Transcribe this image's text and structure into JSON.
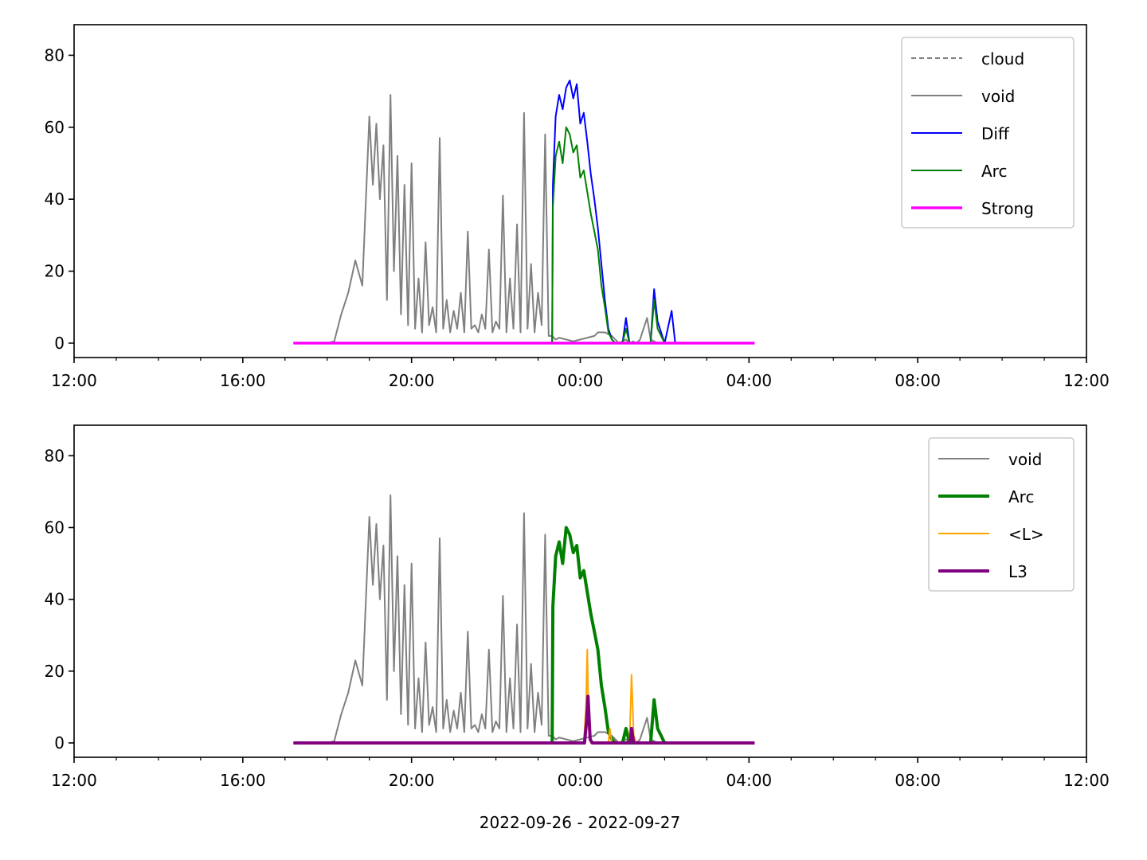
{
  "chart_data": [
    {
      "type": "line",
      "title": "",
      "xlabel": "",
      "ylabel": "",
      "xlim": [
        "2022-09-26 12:00",
        "2022-09-27 12:00"
      ],
      "ylim": [
        -4,
        88.5
      ],
      "x_ticks": [
        "12:00",
        "16:00",
        "20:00",
        "00:00",
        "04:00",
        "08:00",
        "12:00"
      ],
      "y_ticks": [
        "0",
        "20",
        "40",
        "60",
        "80"
      ],
      "grid": false,
      "legend_position": "top-right",
      "legend": [
        "cloud",
        "void",
        "Diff",
        "Arc",
        "Strong"
      ],
      "series": [
        {
          "name": "cloud",
          "color": "#808080",
          "style": "dashed",
          "points": []
        },
        {
          "name": "void",
          "color": "#808080",
          "style": "solid",
          "points": [
            [
              "17:12",
              0
            ],
            [
              "18:00",
              0
            ],
            [
              "18:10",
              0.5
            ],
            [
              "18:20",
              8
            ],
            [
              "18:30",
              14
            ],
            [
              "18:40",
              23
            ],
            [
              "18:50",
              16
            ],
            [
              "19:00",
              63
            ],
            [
              "19:05",
              44
            ],
            [
              "19:10",
              61
            ],
            [
              "19:15",
              40
            ],
            [
              "19:20",
              55
            ],
            [
              "19:25",
              12
            ],
            [
              "19:30",
              69
            ],
            [
              "19:35",
              20
            ],
            [
              "19:40",
              52
            ],
            [
              "19:45",
              8
            ],
            [
              "19:50",
              44
            ],
            [
              "19:55",
              5
            ],
            [
              "20:00",
              50
            ],
            [
              "20:05",
              4
            ],
            [
              "20:10",
              18
            ],
            [
              "20:15",
              3
            ],
            [
              "20:20",
              28
            ],
            [
              "20:25",
              5
            ],
            [
              "20:30",
              10
            ],
            [
              "20:35",
              3
            ],
            [
              "20:40",
              57
            ],
            [
              "20:45",
              4
            ],
            [
              "20:50",
              12
            ],
            [
              "20:55",
              3
            ],
            [
              "21:00",
              9
            ],
            [
              "21:05",
              4
            ],
            [
              "21:10",
              14
            ],
            [
              "21:15",
              3
            ],
            [
              "21:20",
              31
            ],
            [
              "21:25",
              4
            ],
            [
              "21:30",
              5
            ],
            [
              "21:35",
              3
            ],
            [
              "21:40",
              8
            ],
            [
              "21:45",
              4
            ],
            [
              "21:50",
              26
            ],
            [
              "21:55",
              3
            ],
            [
              "22:00",
              6
            ],
            [
              "22:05",
              4
            ],
            [
              "22:10",
              41
            ],
            [
              "22:15",
              3
            ],
            [
              "22:20",
              18
            ],
            [
              "22:25",
              4
            ],
            [
              "22:30",
              33
            ],
            [
              "22:35",
              3
            ],
            [
              "22:40",
              64
            ],
            [
              "22:45",
              4
            ],
            [
              "22:50",
              22
            ],
            [
              "22:55",
              3
            ],
            [
              "23:00",
              14
            ],
            [
              "23:05",
              5
            ],
            [
              "23:10",
              58
            ],
            [
              "23:15",
              2
            ],
            [
              "23:20",
              2
            ],
            [
              "23:25",
              1
            ],
            [
              "23:30",
              1.5
            ],
            [
              "23:40",
              1
            ],
            [
              "23:50",
              0.5
            ],
            [
              "00:00",
              1
            ],
            [
              "00:10",
              1.5
            ],
            [
              "00:20",
              2
            ],
            [
              "00:25",
              3
            ],
            [
              "00:30",
              3
            ],
            [
              "00:35",
              3
            ],
            [
              "00:40",
              2.5
            ],
            [
              "00:45",
              2
            ],
            [
              "00:50",
              1
            ],
            [
              "00:55",
              0
            ],
            [
              "01:05",
              1
            ],
            [
              "01:10",
              0
            ],
            [
              "01:15",
              0.5
            ],
            [
              "01:20",
              0
            ],
            [
              "01:25",
              1
            ],
            [
              "01:30",
              4
            ],
            [
              "01:35",
              7
            ],
            [
              "01:40",
              1
            ],
            [
              "01:50",
              0
            ]
          ]
        },
        {
          "name": "Diff",
          "color": "#0000ff",
          "style": "solid",
          "points": [
            [
              "17:12",
              0
            ],
            [
              "23:20",
              0
            ],
            [
              "23:21",
              44
            ],
            [
              "23:25",
              63
            ],
            [
              "23:30",
              69
            ],
            [
              "23:35",
              65
            ],
            [
              "23:40",
              71
            ],
            [
              "23:45",
              73
            ],
            [
              "23:50",
              68
            ],
            [
              "23:55",
              72
            ],
            [
              "24:00",
              61
            ],
            [
              "24:05",
              64
            ],
            [
              "24:10",
              56
            ],
            [
              "24:15",
              47
            ],
            [
              "24:20",
              40
            ],
            [
              "24:25",
              32
            ],
            [
              "24:30",
              22
            ],
            [
              "24:35",
              12
            ],
            [
              "24:40",
              4
            ],
            [
              "24:45",
              1
            ],
            [
              "24:50",
              0
            ],
            [
              "25:00",
              0
            ],
            [
              "25:05",
              7
            ],
            [
              "25:10",
              0
            ],
            [
              "25:40",
              0
            ],
            [
              "25:45",
              15
            ],
            [
              "25:50",
              6
            ],
            [
              "26:00",
              0
            ],
            [
              "26:10",
              9
            ],
            [
              "26:15",
              0
            ],
            [
              "28:07",
              0
            ]
          ]
        },
        {
          "name": "Arc",
          "color": "#008000",
          "style": "solid",
          "points": [
            [
              "17:12",
              0
            ],
            [
              "23:20",
              0
            ],
            [
              "23:21",
              38
            ],
            [
              "23:25",
              52
            ],
            [
              "23:30",
              56
            ],
            [
              "23:35",
              50
            ],
            [
              "23:40",
              60
            ],
            [
              "23:45",
              58
            ],
            [
              "23:50",
              53
            ],
            [
              "23:55",
              55
            ],
            [
              "24:00",
              46
            ],
            [
              "24:05",
              48
            ],
            [
              "24:10",
              42
            ],
            [
              "24:15",
              36
            ],
            [
              "24:20",
              31
            ],
            [
              "24:25",
              26
            ],
            [
              "24:30",
              16
            ],
            [
              "24:35",
              10
            ],
            [
              "24:40",
              3
            ],
            [
              "24:45",
              1
            ],
            [
              "24:50",
              0
            ],
            [
              "25:00",
              0
            ],
            [
              "25:05",
              4
            ],
            [
              "25:10",
              0
            ],
            [
              "25:40",
              0
            ],
            [
              "25:45",
              12
            ],
            [
              "25:50",
              4
            ],
            [
              "26:00",
              0
            ],
            [
              "28:07",
              0
            ]
          ]
        },
        {
          "name": "Strong",
          "color": "#ff00ff",
          "style": "solid",
          "points": [
            [
              "17:12",
              0
            ],
            [
              "04:08",
              0
            ]
          ]
        }
      ]
    },
    {
      "type": "line",
      "title": "",
      "xlabel": "2022-09-26 - 2022-09-27",
      "ylabel": "",
      "xlim": [
        "2022-09-26 12:00",
        "2022-09-27 12:00"
      ],
      "ylim": [
        -4,
        88.5
      ],
      "x_ticks": [
        "12:00",
        "16:00",
        "20:00",
        "00:00",
        "04:00",
        "08:00",
        "12:00"
      ],
      "y_ticks": [
        "0",
        "20",
        "40",
        "60",
        "80"
      ],
      "grid": false,
      "legend_position": "top-right",
      "legend": [
        "void",
        "Arc",
        "<L>",
        "L3"
      ],
      "series": [
        {
          "name": "void",
          "color": "#808080",
          "style": "solid",
          "points": []
        },
        {
          "name": "Arc",
          "color": "#008000",
          "style": "solid-thick",
          "points": []
        },
        {
          "name": "<L>",
          "color": "#ffa500",
          "style": "solid",
          "points": [
            [
              "17:12",
              0
            ],
            [
              "00:05",
              0
            ],
            [
              "00:08",
              10
            ],
            [
              "00:10",
              26
            ],
            [
              "00:12",
              4
            ],
            [
              "00:15",
              0
            ],
            [
              "00:40",
              0
            ],
            [
              "00:42",
              4
            ],
            [
              "00:45",
              0
            ],
            [
              "01:10",
              0
            ],
            [
              "01:13",
              19
            ],
            [
              "01:16",
              2
            ],
            [
              "01:20",
              0
            ],
            [
              "04:08",
              0
            ]
          ]
        },
        {
          "name": "L3",
          "color": "#800080",
          "style": "solid-thick",
          "points": [
            [
              "17:12",
              0
            ],
            [
              "00:06",
              0
            ],
            [
              "00:09",
              6
            ],
            [
              "00:11",
              13
            ],
            [
              "00:14",
              1
            ],
            [
              "00:17",
              0
            ],
            [
              "01:11",
              0
            ],
            [
              "01:13",
              4
            ],
            [
              "01:16",
              0
            ],
            [
              "04:08",
              0
            ]
          ]
        }
      ]
    }
  ]
}
